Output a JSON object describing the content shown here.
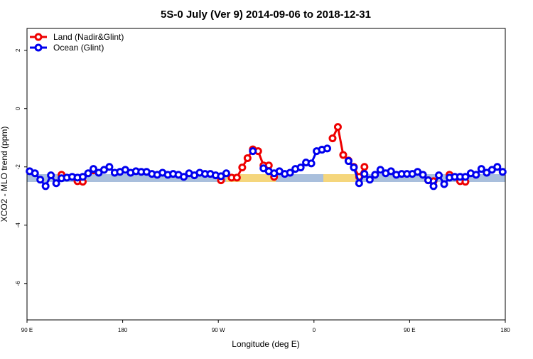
{
  "chart_data": {
    "type": "line",
    "title": "5S-0 July (Ver 9)   2014-09-06 to 2018-12-31",
    "xlabel": "Longitude (deg E)",
    "ylabel": "XCO2 - MLO trend (ppm)",
    "xlim": [
      90,
      540
    ],
    "ylim": [
      -7.25,
      2.75
    ],
    "xticks": [
      {
        "value": 90,
        "label": "90 E"
      },
      {
        "value": 180,
        "label": "180"
      },
      {
        "value": 270,
        "label": "90 W"
      },
      {
        "value": 360,
        "label": "0"
      },
      {
        "value": 450,
        "label": "90 E"
      },
      {
        "value": 540,
        "label": "180"
      }
    ],
    "yticks": [
      2,
      0,
      -2,
      -4,
      -6
    ],
    "legend": "top-left",
    "x": [
      92.5,
      97.5,
      102.5,
      107.5,
      112.5,
      117.5,
      122.5,
      127.5,
      132.5,
      137.5,
      142.5,
      147.5,
      152.5,
      157.5,
      162.5,
      167.5,
      172.5,
      177.5,
      182.5,
      187.5,
      192.5,
      197.5,
      202.5,
      207.5,
      212.5,
      217.5,
      222.5,
      227.5,
      232.5,
      237.5,
      242.5,
      247.5,
      252.5,
      257.5,
      262.5,
      267.5,
      272.5,
      277.5,
      282.5,
      287.5,
      292.5,
      297.5,
      302.5,
      307.5,
      312.5,
      317.5,
      322.5,
      327.5,
      332.5,
      337.5,
      342.5,
      347.5,
      352.5,
      357.5,
      362.5,
      367.5,
      372.5,
      377.5,
      382.5,
      387.5,
      392.5,
      397.5,
      402.5,
      407.5,
      412.5,
      417.5,
      422.5,
      427.5,
      432.5,
      437.5,
      442.5,
      447.5,
      452.5,
      457.5,
      462.5,
      467.5,
      472.5,
      477.5,
      482.5,
      487.5,
      492.5,
      497.5,
      502.5,
      507.5,
      512.5,
      517.5,
      522.5,
      527.5,
      532.5,
      537.5
    ],
    "series": [
      {
        "name": "Land (Nadir&Glint)",
        "color": "#ee0000",
        "values": [
          null,
          null,
          null,
          null,
          null,
          null,
          -2.27,
          null,
          null,
          -2.49,
          -2.51,
          null,
          -2.12,
          null,
          null,
          null,
          null,
          null,
          null,
          null,
          null,
          null,
          null,
          null,
          null,
          null,
          null,
          null,
          null,
          null,
          null,
          null,
          null,
          null,
          null,
          null,
          -2.46,
          null,
          -2.37,
          -2.37,
          -2.02,
          -1.7,
          -1.4,
          -1.46,
          -1.95,
          -1.95,
          -2.34,
          null,
          null,
          null,
          null,
          null,
          null,
          null,
          null,
          null,
          null,
          -1.02,
          -0.63,
          -1.59,
          -1.78,
          -2.0,
          -2.34,
          -2.0,
          null,
          null,
          null,
          null,
          null,
          null,
          null,
          null,
          null,
          null,
          null,
          -2.46,
          -2.49,
          null,
          null,
          -2.27,
          null,
          -2.49,
          -2.51,
          null,
          null,
          null,
          null,
          null,
          null,
          null
        ]
      },
      {
        "name": "Ocean (Glint)",
        "color": "#0000ee",
        "values": [
          -2.15,
          -2.22,
          -2.44,
          -2.66,
          -2.29,
          -2.56,
          -2.39,
          -2.37,
          -2.34,
          -2.37,
          -2.34,
          -2.22,
          -2.07,
          -2.2,
          -2.1,
          -2.0,
          -2.2,
          -2.17,
          -2.1,
          -2.2,
          -2.15,
          -2.17,
          -2.17,
          -2.24,
          -2.27,
          -2.2,
          -2.27,
          -2.24,
          -2.27,
          -2.34,
          -2.22,
          -2.29,
          -2.2,
          -2.24,
          -2.24,
          -2.29,
          -2.32,
          -2.22,
          null,
          null,
          null,
          null,
          -1.46,
          null,
          -2.05,
          -2.15,
          -2.22,
          -2.15,
          -2.24,
          -2.2,
          -2.07,
          -2.02,
          -1.85,
          -1.88,
          -1.46,
          -1.41,
          -1.37,
          null,
          null,
          null,
          -1.8,
          -2.02,
          -2.56,
          -2.24,
          -2.44,
          -2.27,
          -2.1,
          -2.22,
          -2.15,
          -2.27,
          -2.24,
          -2.24,
          -2.24,
          -2.17,
          -2.27,
          -2.46,
          -2.66,
          -2.29,
          -2.59,
          -2.37,
          -2.34,
          -2.34,
          -2.34,
          -2.22,
          -2.27,
          -2.07,
          -2.2,
          -2.1,
          -2.0,
          -2.17
        ]
      }
    ]
  }
}
